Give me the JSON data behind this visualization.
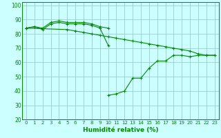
{
  "xlabel": "Humidité relative (%)",
  "background_color": "#ccffff",
  "grid_color": "#99cccc",
  "line_color": "#008800",
  "xlim": [
    -0.5,
    23.5
  ],
  "ylim": [
    20,
    102
  ],
  "xticks": [
    0,
    1,
    2,
    3,
    4,
    5,
    6,
    7,
    8,
    9,
    10,
    11,
    12,
    13,
    14,
    15,
    16,
    17,
    18,
    19,
    20,
    21,
    22,
    23
  ],
  "yticks": [
    20,
    30,
    40,
    50,
    60,
    70,
    80,
    90,
    100
  ],
  "series": [
    {
      "x": [
        0,
        1,
        2,
        3,
        4,
        5,
        6,
        7,
        8,
        9,
        10
      ],
      "y": [
        84,
        85,
        84,
        88,
        89,
        88,
        88,
        88,
        87,
        85,
        84
      ]
    },
    {
      "x": [
        0,
        1,
        2,
        3,
        4,
        5,
        6,
        7,
        8,
        9,
        10
      ],
      "y": [
        84,
        85,
        83,
        87,
        88,
        87,
        87,
        87,
        86,
        84,
        72
      ]
    },
    {
      "x": [
        0,
        5,
        6,
        7,
        8,
        9,
        10,
        11,
        12,
        13,
        14,
        15,
        16,
        17,
        18,
        19,
        20,
        21,
        22,
        23
      ],
      "y": [
        84,
        83,
        82,
        81,
        80,
        79,
        78,
        77,
        76,
        75,
        74,
        73,
        72,
        71,
        70,
        69,
        68,
        66,
        65,
        65
      ]
    },
    {
      "x": [
        10,
        11,
        12,
        13,
        14,
        15,
        16,
        17,
        18,
        19,
        20,
        21,
        22,
        23
      ],
      "y": [
        37,
        38,
        40,
        49,
        49,
        56,
        61,
        61,
        65,
        65,
        64,
        65,
        65,
        65
      ]
    }
  ]
}
